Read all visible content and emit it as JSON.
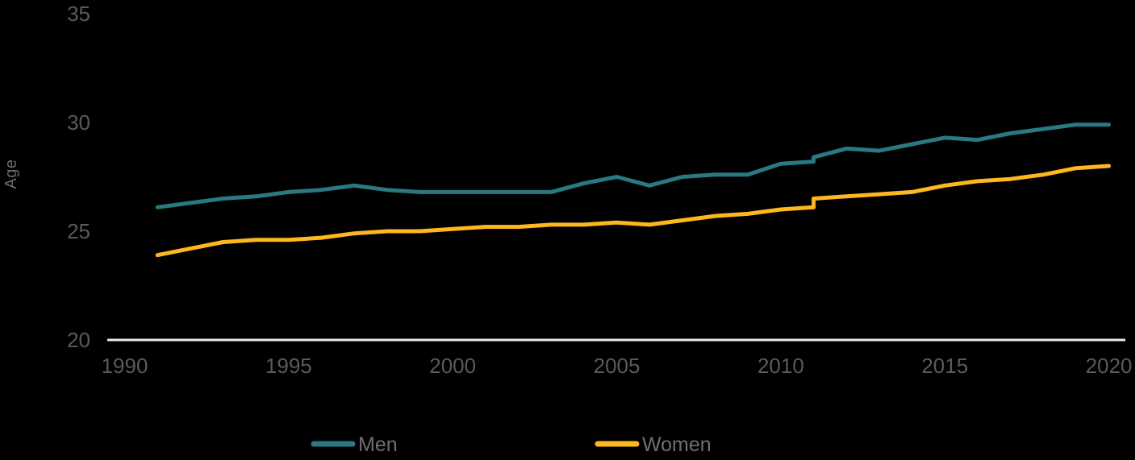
{
  "chart_data": {
    "type": "line",
    "title": "",
    "xlabel": "",
    "ylabel": "Age",
    "xlim": [
      1990,
      2020
    ],
    "ylim": [
      20,
      35
    ],
    "x_ticks": [
      1990,
      1995,
      2000,
      2005,
      2010,
      2015,
      2020
    ],
    "y_ticks": [
      20,
      25,
      30,
      35
    ],
    "grid": false,
    "legend_position": "bottom",
    "series_break_year": 2011,
    "series": [
      {
        "name": "Men",
        "color": "#2A7883",
        "points": [
          [
            1991,
            26.1
          ],
          [
            1992,
            26.3
          ],
          [
            1993,
            26.5
          ],
          [
            1994,
            26.6
          ],
          [
            1995,
            26.8
          ],
          [
            1996,
            26.9
          ],
          [
            1997,
            27.1
          ],
          [
            1998,
            26.9
          ],
          [
            1999,
            26.8
          ],
          [
            2000,
            26.8
          ],
          [
            2001,
            26.8
          ],
          [
            2002,
            26.8
          ],
          [
            2003,
            26.8
          ],
          [
            2004,
            27.2
          ],
          [
            2005,
            27.5
          ],
          [
            2006,
            27.1
          ],
          [
            2007,
            27.5
          ],
          [
            2008,
            27.6
          ],
          [
            2009,
            27.6
          ],
          [
            2010,
            28.1
          ],
          [
            2011,
            28.2
          ],
          [
            2011,
            28.4
          ],
          [
            2012,
            28.8
          ],
          [
            2013,
            28.7
          ],
          [
            2014,
            29.0
          ],
          [
            2015,
            29.3
          ],
          [
            2016,
            29.2
          ],
          [
            2017,
            29.5
          ],
          [
            2018,
            29.7
          ],
          [
            2019,
            29.9
          ],
          [
            2020,
            29.9
          ]
        ]
      },
      {
        "name": "Women",
        "color": "#FCB81E",
        "points": [
          [
            1991,
            23.9
          ],
          [
            1992,
            24.2
          ],
          [
            1993,
            24.5
          ],
          [
            1994,
            24.6
          ],
          [
            1995,
            24.6
          ],
          [
            1996,
            24.7
          ],
          [
            1997,
            24.9
          ],
          [
            1998,
            25.0
          ],
          [
            1999,
            25.0
          ],
          [
            2000,
            25.1
          ],
          [
            2001,
            25.2
          ],
          [
            2002,
            25.2
          ],
          [
            2003,
            25.3
          ],
          [
            2004,
            25.3
          ],
          [
            2005,
            25.4
          ],
          [
            2006,
            25.3
          ],
          [
            2007,
            25.5
          ],
          [
            2008,
            25.7
          ],
          [
            2009,
            25.8
          ],
          [
            2010,
            26.0
          ],
          [
            2011,
            26.1
          ],
          [
            2011,
            26.5
          ],
          [
            2012,
            26.6
          ],
          [
            2013,
            26.7
          ],
          [
            2014,
            26.8
          ],
          [
            2015,
            27.1
          ],
          [
            2016,
            27.3
          ],
          [
            2017,
            27.4
          ],
          [
            2018,
            27.6
          ],
          [
            2019,
            27.9
          ],
          [
            2020,
            28.0
          ]
        ]
      }
    ]
  },
  "colors": {
    "background": "#000000",
    "axis_line": "#ECECEC",
    "tick_text": "#5A5A5A",
    "legend_text": "#6F6F6F",
    "men_line": "#2A7883",
    "women_line": "#FCB81E"
  }
}
